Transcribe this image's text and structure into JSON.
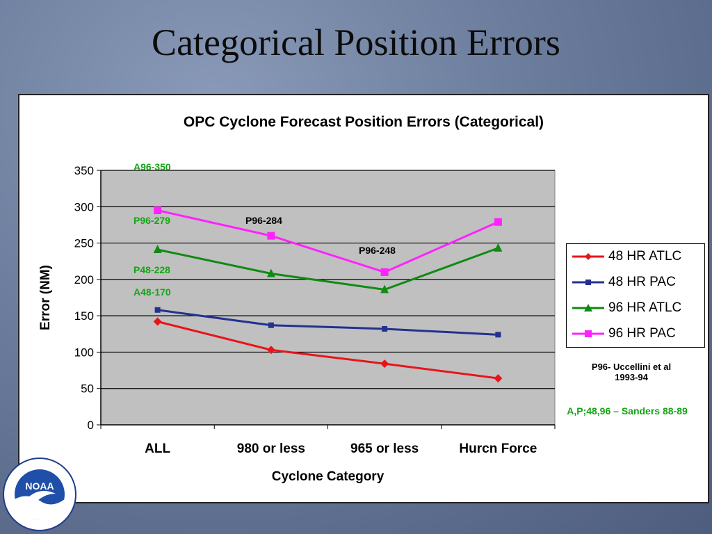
{
  "slide_title": "Categorical Position Errors",
  "colors": {
    "48_atlc": "#e8141a",
    "48_pac": "#23318f",
    "96_atlc": "#0f8a12",
    "96_pac": "#ff22ff",
    "note_green": "#13a513",
    "plot_bg": "#c0c0c0"
  },
  "chart_data": {
    "type": "line",
    "title": "OPC Cyclone Forecast Position Errors (Categorical)",
    "xlabel": "Cyclone Category",
    "ylabel": "Error (NM)",
    "categories": [
      "ALL",
      "980 or less",
      "965 or less",
      "Hurcn Force"
    ],
    "ylim": [
      0,
      350
    ],
    "yticks": [
      "0",
      "50",
      "100",
      "150",
      "200",
      "250",
      "300",
      "350"
    ],
    "grid": true,
    "legend_position": "right",
    "series": [
      {
        "name": "48 HR ATLC",
        "values": [
          142,
          103,
          84,
          64
        ],
        "marker": "diamond",
        "color": "#e8141a"
      },
      {
        "name": "48 HR PAC",
        "values": [
          158,
          137,
          132,
          124
        ],
        "marker": "square",
        "color": "#23318f"
      },
      {
        "name": "96 HR ATLC",
        "values": [
          241,
          208,
          186,
          243
        ],
        "marker": "triangle",
        "color": "#0f8a12"
      },
      {
        "name": "96 HR PAC",
        "values": [
          295,
          260,
          210,
          279
        ],
        "marker": "square",
        "color": "#ff22ff"
      }
    ],
    "annotations": [
      {
        "text": "A96-350",
        "color": "green"
      },
      {
        "text": "P96-279",
        "color": "green"
      },
      {
        "text": "P48-228",
        "color": "green"
      },
      {
        "text": "A48-170",
        "color": "green"
      },
      {
        "text": "P96-284",
        "color": "black"
      },
      {
        "text": "P96-248",
        "color": "black"
      }
    ]
  },
  "notes": {
    "uccellini_line1": "P96- Uccellini et al",
    "uccellini_line2": "1993-94",
    "sanders": "A,P;48,96 – Sanders 88-89"
  },
  "logo": {
    "text": "NOAA",
    "icon": "noaa-logo-icon"
  }
}
